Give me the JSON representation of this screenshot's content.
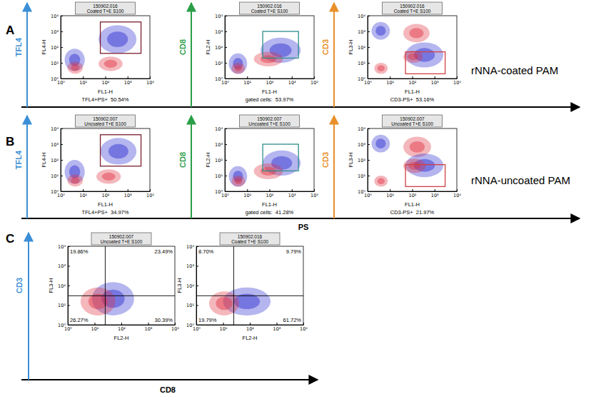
{
  "panel_labels": [
    "A",
    "B",
    "C"
  ],
  "row_labels": [
    "rNNA-coated PAM",
    "rNNA-uncoated PAM"
  ],
  "arrow_labels": {
    "rows": [
      {
        "text": "TFL4",
        "color": "#3b8fd6"
      },
      {
        "text": "CD8",
        "color": "#2a9e48"
      },
      {
        "text": "CD3",
        "color": "#e8902a"
      }
    ],
    "x": "PS",
    "c_y": {
      "text": "CD3",
      "color": "#3b8fd6"
    },
    "c_x": "CD8"
  },
  "chart_data": [
    {
      "type": "scatter",
      "header": [
        "150902.016",
        "Coated T+E S100"
      ],
      "x_label": "FL1-H",
      "y_label": "FL4-H",
      "log": true,
      "xlim": [
        1,
        10000
      ],
      "ylim": [
        1,
        10000
      ],
      "xticks": [
        {
          "value": 1,
          "label": "10⁰"
        },
        {
          "value": 10,
          "label": "10¹"
        },
        {
          "value": 100,
          "label": "10²"
        },
        {
          "value": 1000,
          "label": "10³"
        },
        {
          "value": 10000,
          "label": "10⁴"
        }
      ],
      "yticks": [
        {
          "value": 1,
          "label": "10⁰"
        },
        {
          "value": 10,
          "label": "10¹"
        },
        {
          "value": 100,
          "label": "10²"
        },
        {
          "value": 1000,
          "label": "10³"
        },
        {
          "value": 10000,
          "label": "10⁴"
        }
      ],
      "populations": [
        {
          "color": "#2b2bd0",
          "x": [
            50,
            2500
          ],
          "y": [
            40,
            2500
          ]
        },
        {
          "color": "#e03040",
          "x": [
            50,
            600
          ],
          "y": [
            3,
            25
          ]
        },
        {
          "color": "#2b2bd0",
          "x": [
            1.5,
            12
          ],
          "y": [
            3,
            80
          ]
        },
        {
          "color": "#e03040",
          "x": [
            2,
            10
          ],
          "y": [
            2,
            12
          ]
        }
      ],
      "gate": {
        "x": [
          60,
          4000
        ],
        "y": [
          40,
          4000
        ],
        "color": "#7b1f2e"
      },
      "gate_label": "TFL4+PS+  50.54%"
    },
    {
      "type": "scatter",
      "header": [
        "150902.016",
        "Coated T+E S100"
      ],
      "x_label": "FL1-H",
      "y_label": "FL2-H",
      "log": true,
      "xlim": [
        1,
        10000
      ],
      "ylim": [
        1,
        10000
      ],
      "xticks": [
        {
          "value": 1,
          "label": "10⁰"
        },
        {
          "value": 10,
          "label": "10¹"
        },
        {
          "value": 100,
          "label": "10²"
        },
        {
          "value": 1000,
          "label": "10³"
        },
        {
          "value": 10000,
          "label": "10⁴"
        }
      ],
      "yticks": [
        {
          "value": 1,
          "label": "10⁰"
        },
        {
          "value": 10,
          "label": "10¹"
        },
        {
          "value": 100,
          "label": "10²"
        },
        {
          "value": 1000,
          "label": "10³"
        },
        {
          "value": 10000,
          "label": "10⁴"
        }
      ],
      "populations": [
        {
          "color": "#2b2bd0",
          "x": [
            40,
            2500
          ],
          "y": [
            10,
            400
          ]
        },
        {
          "color": "#e03040",
          "x": [
            20,
            400
          ],
          "y": [
            6,
            50
          ]
        },
        {
          "color": "#2b2bd0",
          "x": [
            1.5,
            10
          ],
          "y": [
            2,
            40
          ]
        },
        {
          "color": "#e03040",
          "x": [
            2,
            8
          ],
          "y": [
            2,
            10
          ]
        }
      ],
      "gate": {
        "x": [
          50,
          2000
        ],
        "y": [
          20,
          1000
        ],
        "color": "#2e8b8b"
      },
      "gate_label": "gated cells:  53.97%"
    },
    {
      "type": "scatter",
      "header": [
        "150902.016",
        "Coated T+E S100"
      ],
      "x_label": "FL1-H",
      "y_label": "FL3-H",
      "log": true,
      "xlim": [
        1,
        10000
      ],
      "ylim": [
        1,
        10000
      ],
      "xticks": [
        {
          "value": 1,
          "label": "10⁰"
        },
        {
          "value": 10,
          "label": "10¹"
        },
        {
          "value": 100,
          "label": "10²"
        },
        {
          "value": 1000,
          "label": "10³"
        },
        {
          "value": 10000,
          "label": "10⁴"
        }
      ],
      "yticks": [
        {
          "value": 1,
          "label": "10⁰"
        },
        {
          "value": 10,
          "label": "10¹"
        },
        {
          "value": 100,
          "label": "10²"
        },
        {
          "value": 1000,
          "label": "10³"
        },
        {
          "value": 10000,
          "label": "10⁴"
        }
      ],
      "populations": [
        {
          "color": "#2b2bd0",
          "x": [
            1.5,
            10
          ],
          "y": [
            300,
            4000
          ]
        },
        {
          "color": "#e03040",
          "x": [
            40,
            600
          ],
          "y": [
            200,
            3000
          ]
        },
        {
          "color": "#2b2bd0",
          "x": [
            50,
            2500
          ],
          "y": [
            5,
            200
          ]
        },
        {
          "color": "#e03040",
          "x": [
            40,
            300
          ],
          "y": [
            10,
            60
          ]
        },
        {
          "color": "#e03040",
          "x": [
            2,
            8
          ],
          "y": [
            2,
            10
          ]
        }
      ],
      "gate": {
        "x": [
          50,
          3000
        ],
        "y": [
          2,
          50
        ],
        "color": "#d04040"
      },
      "gate_label": "CD3-PS+  53.16%"
    },
    {
      "type": "scatter",
      "header": [
        "150902.007",
        "Uncoated T+E S100"
      ],
      "x_label": "FL1-H",
      "y_label": "FL4-H",
      "log": true,
      "xlim": [
        1,
        10000
      ],
      "ylim": [
        1,
        10000
      ],
      "xticks": [
        {
          "value": 1,
          "label": "10⁰"
        },
        {
          "value": 10,
          "label": "10¹"
        },
        {
          "value": 100,
          "label": "10²"
        },
        {
          "value": 1000,
          "label": "10³"
        },
        {
          "value": 10000,
          "label": "10⁴"
        }
      ],
      "yticks": [
        {
          "value": 1,
          "label": "10⁰"
        },
        {
          "value": 10,
          "label": "10¹"
        },
        {
          "value": 100,
          "label": "10²"
        },
        {
          "value": 1000,
          "label": "10³"
        },
        {
          "value": 10000,
          "label": "10⁴"
        }
      ],
      "populations": [
        {
          "color": "#2b2bd0",
          "x": [
            60,
            2500
          ],
          "y": [
            50,
            2500
          ]
        },
        {
          "color": "#e03040",
          "x": [
            40,
            500
          ],
          "y": [
            3,
            25
          ]
        },
        {
          "color": "#2b2bd0",
          "x": [
            1.5,
            12
          ],
          "y": [
            3,
            100
          ]
        },
        {
          "color": "#e03040",
          "x": [
            2,
            10
          ],
          "y": [
            2,
            12
          ]
        }
      ],
      "gate": {
        "x": [
          60,
          4000
        ],
        "y": [
          40,
          4000
        ],
        "color": "#7b1f2e"
      },
      "gate_label": "TFL4+PS+  34.97%"
    },
    {
      "type": "scatter",
      "header": [
        "150902.007",
        "Uncoated T+E S100"
      ],
      "x_label": "FL1-H",
      "y_label": "FL2-H",
      "log": true,
      "xlim": [
        1,
        10000
      ],
      "ylim": [
        1,
        10000
      ],
      "xticks": [
        {
          "value": 1,
          "label": "10⁰"
        },
        {
          "value": 10,
          "label": "10¹"
        },
        {
          "value": 100,
          "label": "10²"
        },
        {
          "value": 1000,
          "label": "10³"
        },
        {
          "value": 10000,
          "label": "10⁴"
        }
      ],
      "yticks": [
        {
          "value": 1,
          "label": "10⁰"
        },
        {
          "value": 10,
          "label": "10¹"
        },
        {
          "value": 100,
          "label": "10²"
        },
        {
          "value": 1000,
          "label": "10³"
        },
        {
          "value": 10000,
          "label": "10⁴"
        }
      ],
      "populations": [
        {
          "color": "#2b2bd0",
          "x": [
            50,
            2500
          ],
          "y": [
            10,
            400
          ]
        },
        {
          "color": "#e03040",
          "x": [
            20,
            400
          ],
          "y": [
            6,
            60
          ]
        },
        {
          "color": "#2b2bd0",
          "x": [
            1.5,
            10
          ],
          "y": [
            2,
            40
          ]
        },
        {
          "color": "#e03040",
          "x": [
            2,
            8
          ],
          "y": [
            2,
            10
          ]
        }
      ],
      "gate": {
        "x": [
          50,
          2000
        ],
        "y": [
          20,
          1000
        ],
        "color": "#2e8b8b"
      },
      "gate_label": "gated cells:  41.28%"
    },
    {
      "type": "scatter",
      "header": [
        "150902.007",
        "Uncoated T+E S100"
      ],
      "x_label": "FL1-H",
      "y_label": "FL3-H",
      "log": true,
      "xlim": [
        1,
        10000
      ],
      "ylim": [
        1,
        10000
      ],
      "xticks": [
        {
          "value": 1,
          "label": "10⁰"
        },
        {
          "value": 10,
          "label": "10¹"
        },
        {
          "value": 100,
          "label": "10²"
        },
        {
          "value": 1000,
          "label": "10³"
        },
        {
          "value": 10000,
          "label": "10⁴"
        }
      ],
      "yticks": [
        {
          "value": 1,
          "label": "10⁰"
        },
        {
          "value": 10,
          "label": "10¹"
        },
        {
          "value": 100,
          "label": "10²"
        },
        {
          "value": 1000,
          "label": "10³"
        },
        {
          "value": 10000,
          "label": "10⁴"
        }
      ],
      "populations": [
        {
          "color": "#2b2bd0",
          "x": [
            1.5,
            10
          ],
          "y": [
            300,
            4000
          ]
        },
        {
          "color": "#e03040",
          "x": [
            40,
            700
          ],
          "y": [
            150,
            3000
          ]
        },
        {
          "color": "#2b2bd0",
          "x": [
            50,
            2500
          ],
          "y": [
            8,
            250
          ]
        },
        {
          "color": "#e03040",
          "x": [
            40,
            400
          ],
          "y": [
            15,
            120
          ]
        },
        {
          "color": "#e03040",
          "x": [
            2,
            8
          ],
          "y": [
            2,
            10
          ]
        }
      ],
      "gate": {
        "x": [
          50,
          3000
        ],
        "y": [
          2,
          50
        ],
        "color": "#d04040"
      },
      "gate_label": "CD3-PS+  21.97%"
    },
    {
      "type": "scatter",
      "header": [
        "150902.007",
        "Uncoated T+E S100"
      ],
      "x_label": "FL2-H",
      "y_label": "FL3-H",
      "log": true,
      "xlim": [
        1,
        10000
      ],
      "ylim": [
        1,
        10000
      ],
      "xticks": [
        {
          "value": 1,
          "label": "10⁰"
        },
        {
          "value": 10,
          "label": "10¹"
        },
        {
          "value": 100,
          "label": "10²"
        },
        {
          "value": 1000,
          "label": "10³"
        },
        {
          "value": 10000,
          "label": "10⁴"
        }
      ],
      "yticks": [
        {
          "value": 1,
          "label": "10⁰"
        },
        {
          "value": 10,
          "label": "10¹"
        },
        {
          "value": 100,
          "label": "10²"
        },
        {
          "value": 1000,
          "label": "10³"
        },
        {
          "value": 10000,
          "label": "10⁴"
        }
      ],
      "populations": [
        {
          "color": "#2b2bd0",
          "x": [
            8,
            300
          ],
          "y": [
            3,
            150
          ]
        },
        {
          "color": "#e03040",
          "x": [
            3,
            60
          ],
          "y": [
            3,
            80
          ]
        }
      ],
      "quadrants": {
        "x": 25,
        "y": 30,
        "labels": [
          "19.86%",
          "23.49%",
          "26.27%",
          "30.39%"
        ]
      }
    },
    {
      "type": "scatter",
      "header": [
        "150902.016",
        "Coated T+E S100"
      ],
      "x_label": "FL2-H",
      "y_label": "FL3-H",
      "log": true,
      "xlim": [
        1,
        10000
      ],
      "ylim": [
        1,
        10000
      ],
      "xticks": [
        {
          "value": 1,
          "label": "10⁰"
        },
        {
          "value": 10,
          "label": "10¹"
        },
        {
          "value": 100,
          "label": "10²"
        },
        {
          "value": 1000,
          "label": "10³"
        },
        {
          "value": 10000,
          "label": "10⁴"
        }
      ],
      "yticks": [
        {
          "value": 1,
          "label": "10⁰"
        },
        {
          "value": 10,
          "label": "10¹"
        },
        {
          "value": 100,
          "label": "10²"
        },
        {
          "value": 1000,
          "label": "10³"
        },
        {
          "value": 10000,
          "label": "10⁴"
        }
      ],
      "populations": [
        {
          "color": "#2b2bd0",
          "x": [
            10,
            600
          ],
          "y": [
            3,
            80
          ]
        },
        {
          "color": "#e03040",
          "x": [
            3,
            40
          ],
          "y": [
            3,
            50
          ]
        }
      ],
      "quadrants": {
        "x": 25,
        "y": 30,
        "labels": [
          "8.70%",
          "9.79%",
          "19.79%",
          "61.72%"
        ]
      }
    }
  ]
}
